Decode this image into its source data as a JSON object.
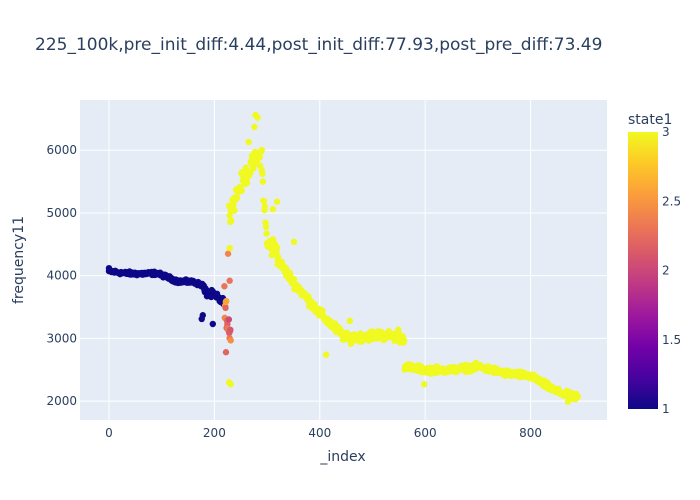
{
  "chart_data": {
    "type": "scatter",
    "title": "225_100k,pre_init_diff:4.44,post_init_diff:77.93,post_pre_diff:73.49",
    "xlabel": "_index",
    "ylabel": "frequency11",
    "xlim": [
      -55,
      945
    ],
    "ylim": [
      1700,
      6800
    ],
    "x_ticks": [
      0,
      200,
      400,
      600,
      800
    ],
    "x_tick_labels": [
      "0",
      "200",
      "400",
      "600",
      "800"
    ],
    "y_ticks": [
      2000,
      3000,
      4000,
      5000,
      6000
    ],
    "y_tick_labels": [
      "2000",
      "3000",
      "4000",
      "5000",
      "6000"
    ],
    "grid": true,
    "plot_background": "#e5ecf6",
    "colorbar": {
      "title": "state1",
      "range": [
        1,
        3
      ],
      "ticks": [
        1,
        1.5,
        2,
        2.5,
        3
      ],
      "tick_labels": [
        "1",
        "1.5",
        "2",
        "2.5",
        "3"
      ],
      "colorscale": [
        "#0d0887",
        "#46039f",
        "#7201a8",
        "#9c179e",
        "#bd3786",
        "#d8576b",
        "#ed7953",
        "#fb9f3a",
        "#fdca26",
        "#f0f921"
      ]
    },
    "segments": [
      {
        "state": 1,
        "x_range": [
          0,
          180
        ],
        "anchors": [
          [
            0,
            4070
          ],
          [
            30,
            4040
          ],
          [
            60,
            4030
          ],
          [
            90,
            4040
          ],
          [
            110,
            3980
          ],
          [
            130,
            3910
          ],
          [
            160,
            3900
          ],
          [
            180,
            3840
          ]
        ],
        "count": 181,
        "noise": 40
      },
      {
        "state": 1,
        "x_range": [
          181,
          220
        ],
        "anchors": [
          [
            181,
            3750
          ],
          [
            200,
            3680
          ],
          [
            220,
            3560
          ]
        ],
        "count": 40,
        "noise": 90
      },
      {
        "state": 2.3,
        "x_range": [
          219,
          231
        ],
        "anchors": [
          [
            219,
            3650
          ],
          [
            225,
            3300
          ],
          [
            231,
            3000
          ]
        ],
        "count": 18,
        "noise": 350
      },
      {
        "state": 3,
        "x_range": [
          228,
          290
        ],
        "anchors": [
          [
            228,
            5000
          ],
          [
            250,
            5450
          ],
          [
            270,
            5750
          ],
          [
            290,
            5950
          ]
        ],
        "count": 63,
        "noise": 220
      },
      {
        "state": 3,
        "x_range": [
          290,
          320
        ],
        "anchors": [
          [
            290,
            5700
          ],
          [
            300,
            4500
          ],
          [
            320,
            4400
          ]
        ],
        "count": 31,
        "noise": 250
      },
      {
        "state": 3,
        "x_range": [
          320,
          560
        ],
        "anchors": [
          [
            320,
            4250
          ],
          [
            350,
            3900
          ],
          [
            400,
            3400
          ],
          [
            450,
            3000
          ],
          [
            500,
            3050
          ],
          [
            530,
            3050
          ],
          [
            560,
            3000
          ]
        ],
        "count": 241,
        "noise": 110
      },
      {
        "state": 3,
        "x_range": [
          561,
          890
        ],
        "anchors": [
          [
            561,
            2550
          ],
          [
            600,
            2500
          ],
          [
            650,
            2500
          ],
          [
            700,
            2550
          ],
          [
            750,
            2450
          ],
          [
            800,
            2400
          ],
          [
            850,
            2150
          ],
          [
            890,
            2050
          ]
        ],
        "count": 330,
        "noise": 75
      }
    ],
    "outliers": [
      {
        "x": 0,
        "y": 4120,
        "state": 1
      },
      {
        "x": 176,
        "y": 3310,
        "state": 1
      },
      {
        "x": 178,
        "y": 3370,
        "state": 1
      },
      {
        "x": 197,
        "y": 3230,
        "state": 1
      },
      {
        "x": 222,
        "y": 2780,
        "state": 2.2
      },
      {
        "x": 226,
        "y": 4350,
        "state": 2.4
      },
      {
        "x": 229,
        "y": 3920,
        "state": 2.3
      },
      {
        "x": 228,
        "y": 2300,
        "state": 3
      },
      {
        "x": 231,
        "y": 2270,
        "state": 3
      },
      {
        "x": 229,
        "y": 4440,
        "state": 3
      },
      {
        "x": 278,
        "y": 6560,
        "state": 3
      },
      {
        "x": 282,
        "y": 6520,
        "state": 3
      },
      {
        "x": 276,
        "y": 6370,
        "state": 3
      },
      {
        "x": 265,
        "y": 6130,
        "state": 3
      },
      {
        "x": 311,
        "y": 5060,
        "state": 3
      },
      {
        "x": 319,
        "y": 5180,
        "state": 3
      },
      {
        "x": 351,
        "y": 4540,
        "state": 3
      },
      {
        "x": 412,
        "y": 2740,
        "state": 3
      },
      {
        "x": 457,
        "y": 3280,
        "state": 3
      },
      {
        "x": 549,
        "y": 3140,
        "state": 3
      },
      {
        "x": 598,
        "y": 2270,
        "state": 3
      },
      {
        "x": 871,
        "y": 1990,
        "state": 3
      }
    ]
  }
}
